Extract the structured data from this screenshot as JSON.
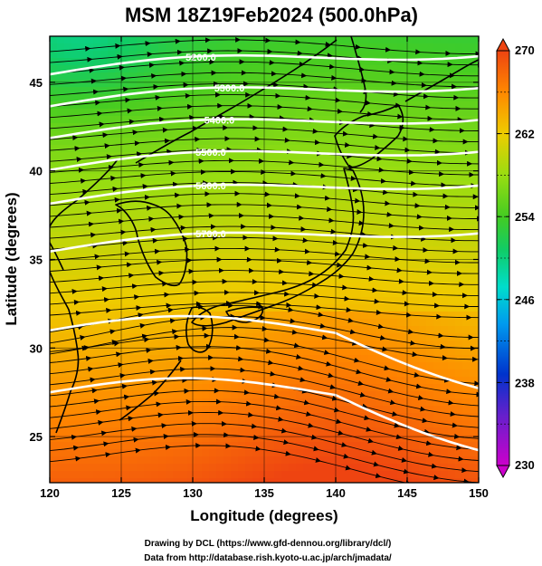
{
  "title": "MSM 18Z19Feb2024 (500.0hPa)",
  "axes": {
    "xlabel": "Longitude (degrees)",
    "ylabel": "Latitude  (degrees)",
    "x_range": [
      120,
      150
    ],
    "y_range": [
      22.4,
      47.6
    ],
    "x_ticks": [
      "120",
      "125",
      "130",
      "135",
      "140",
      "145",
      "150"
    ],
    "y_ticks": [
      "25",
      "30",
      "35",
      "40",
      "45"
    ],
    "grid": true
  },
  "colorbar": {
    "range": [
      230,
      270
    ],
    "ticks": [
      "230",
      "238",
      "246",
      "254",
      "262",
      "270"
    ],
    "extend": "both",
    "colors": [
      "#cc00cc",
      "#6620cc",
      "#0033cc",
      "#0099ee",
      "#00ddcc",
      "#11cc66",
      "#44cc22",
      "#99dd11",
      "#eecc00",
      "#ff8800",
      "#ee4411"
    ]
  },
  "contours": [
    {
      "label": "5200.0"
    },
    {
      "label": "5300.0"
    },
    {
      "label": "5400.0"
    },
    {
      "label": "5500.0"
    },
    {
      "label": "5600.0"
    },
    {
      "label": "5700.0"
    }
  ],
  "footer": {
    "line1": "Drawing by DCL (https://www.gfd-dennou.org/library/dcl/)",
    "line2": "Data from http://database.rish.kyoto-u.ac.jp/arch/jmadata/"
  }
}
